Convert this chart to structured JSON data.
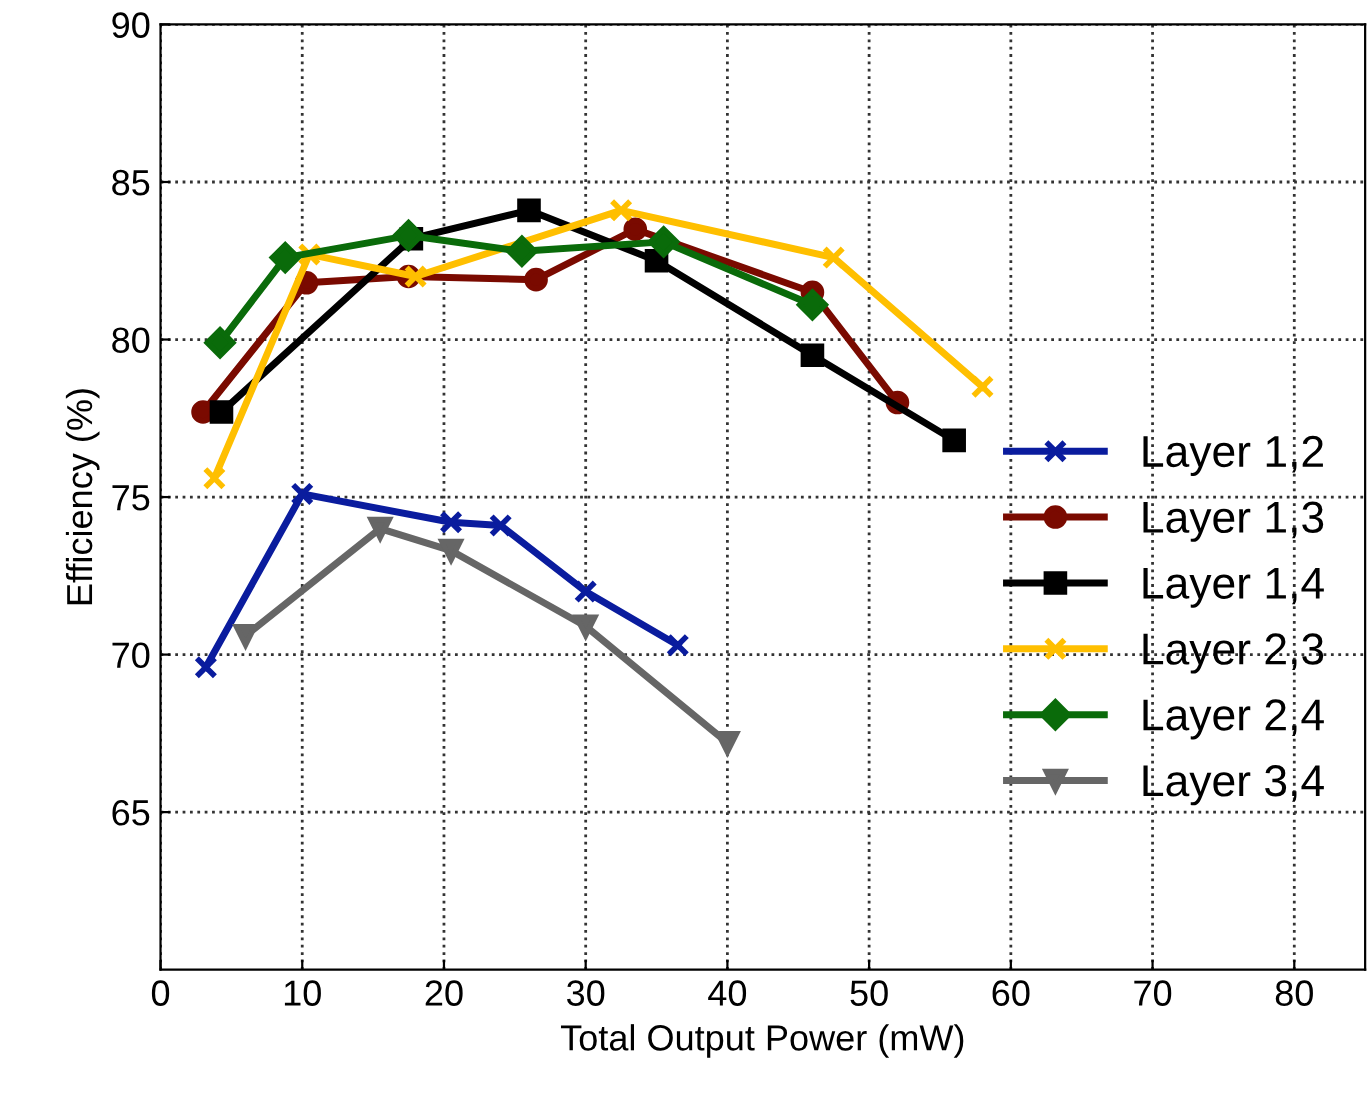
{
  "chart_data": {
    "type": "line",
    "xlabel": "Total Output Power (mW)",
    "ylabel": "Efficiency (%)",
    "xlim": [
      0,
      85
    ],
    "xticks": [
      0,
      10,
      20,
      30,
      40,
      50,
      60,
      70,
      80
    ],
    "ylim": [
      60,
      90
    ],
    "yticks": [
      65,
      70,
      75,
      80,
      85,
      90
    ],
    "grid": true,
    "legend": "right",
    "line_style": "solid",
    "series": [
      {
        "name": "Layer 1,2",
        "color": "#0a1c9e",
        "marker": "cross",
        "x": [
          3.2,
          10,
          20.5,
          24,
          30,
          36.5
        ],
        "values": [
          69.6,
          75.1,
          74.2,
          74.1,
          72,
          70.3
        ]
      },
      {
        "name": "Layer 1,3",
        "color": "#7a0a00",
        "marker": "circle",
        "x": [
          3,
          10.3,
          17.5,
          26.5,
          33.5,
          46,
          52
        ],
        "values": [
          77.7,
          81.8,
          82,
          81.9,
          83.5,
          81.5,
          78
        ]
      },
      {
        "name": "Layer 1,4",
        "color": "#000000",
        "marker": "square",
        "x": [
          4.3,
          17.7,
          26,
          35,
          46,
          56
        ],
        "values": [
          77.7,
          83.2,
          84.1,
          82.5,
          79.5,
          76.8
        ]
      },
      {
        "name": "Layer 2,3",
        "color": "#ffbf00",
        "marker": "cross",
        "x": [
          3.8,
          10.5,
          18,
          32.5,
          47.5,
          58
        ],
        "values": [
          75.6,
          82.7,
          82,
          84.1,
          82.6,
          78.5
        ]
      },
      {
        "name": "Layer 2,4",
        "color": "#0a6b0a",
        "marker": "diamond",
        "x": [
          4.2,
          8.8,
          17.5,
          25.5,
          35.5,
          46
        ],
        "values": [
          79.9,
          82.6,
          83.3,
          82.8,
          83.1,
          81.1
        ]
      },
      {
        "name": "Layer 3,4",
        "color": "#666666",
        "marker": "triangle",
        "x": [
          6,
          15.5,
          20.5,
          30,
          40
        ],
        "values": [
          70.6,
          74,
          73.3,
          70.9,
          67.2
        ]
      }
    ]
  }
}
